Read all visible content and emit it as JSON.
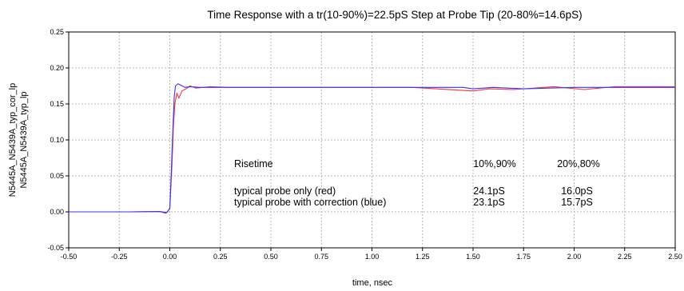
{
  "chart_data": {
    "type": "line",
    "title": "Time Response with a tr(10-90%)=22.5pS Step at Probe Tip (20-80%=14.6pS)",
    "xlabel": "time, nsec",
    "xlim": [
      -0.5,
      2.5
    ],
    "ylim": [
      -0.05,
      0.25
    ],
    "x_ticks": [
      -0.5,
      -0.25,
      0.0,
      0.25,
      0.5,
      0.75,
      1.0,
      1.25,
      1.5,
      1.75,
      2.0,
      2.25,
      2.5
    ],
    "x_tick_labels": [
      "-0.50",
      "-0.25",
      "0.00",
      "0.25",
      "0.50",
      "0.75",
      "1.00",
      "1.25",
      "1.50",
      "1.75",
      "2.00",
      "2.25",
      "2.50"
    ],
    "y_ticks": [
      -0.05,
      0.0,
      0.05,
      0.1,
      0.15,
      0.2,
      0.25
    ],
    "y_tick_labels": [
      "-0.05",
      "0.00",
      "0.05",
      "0.10",
      "0.15",
      "0.20",
      "0.25"
    ],
    "grid": true,
    "legend": "left-vertical",
    "series": [
      {
        "name": "N5445A_N5439A_typ_cor_lp",
        "color": "#3333ff",
        "points": [
          [
            -0.5,
            0.0
          ],
          [
            -0.2,
            0.0
          ],
          [
            -0.05,
            0.0005
          ],
          [
            -0.015,
            -0.001
          ],
          [
            0.0,
            0.005
          ],
          [
            0.008,
            0.06
          ],
          [
            0.016,
            0.12
          ],
          [
            0.022,
            0.16
          ],
          [
            0.028,
            0.175
          ],
          [
            0.04,
            0.178
          ],
          [
            0.055,
            0.176
          ],
          [
            0.075,
            0.173
          ],
          [
            0.1,
            0.174
          ],
          [
            0.15,
            0.173
          ],
          [
            0.25,
            0.173
          ],
          [
            0.5,
            0.173
          ],
          [
            1.0,
            0.173
          ],
          [
            1.45,
            0.173
          ],
          [
            1.5,
            0.171
          ],
          [
            1.6,
            0.173
          ],
          [
            1.75,
            0.171
          ],
          [
            2.0,
            0.173
          ],
          [
            2.5,
            0.173
          ]
        ]
      },
      {
        "name": "N5445A_N5439A_typ_lp",
        "color": "#ff3333",
        "points": [
          [
            -0.5,
            0.0
          ],
          [
            -0.2,
            0.0
          ],
          [
            -0.05,
            0.0005
          ],
          [
            -0.02,
            -0.002
          ],
          [
            0.0,
            0.004
          ],
          [
            0.01,
            0.06
          ],
          [
            0.018,
            0.12
          ],
          [
            0.025,
            0.15
          ],
          [
            0.035,
            0.165
          ],
          [
            0.045,
            0.158
          ],
          [
            0.06,
            0.168
          ],
          [
            0.08,
            0.171
          ],
          [
            0.1,
            0.175
          ],
          [
            0.13,
            0.172
          ],
          [
            0.2,
            0.174
          ],
          [
            0.3,
            0.173
          ],
          [
            0.7,
            0.173
          ],
          [
            1.2,
            0.173
          ],
          [
            1.5,
            0.168
          ],
          [
            1.58,
            0.171
          ],
          [
            1.7,
            0.17
          ],
          [
            1.9,
            0.174
          ],
          [
            2.05,
            0.17
          ],
          [
            2.2,
            0.174
          ],
          [
            2.5,
            0.174
          ]
        ]
      }
    ],
    "annotation": {
      "heading": "Risetime",
      "col1": "10%,90%",
      "col2": "20%,80%",
      "rows": [
        {
          "label": "typical probe only (red)",
          "v1": "24.1pS",
          "v2": "16.0pS"
        },
        {
          "label": "typical probe with correction (blue)",
          "v1": "23.1pS",
          "v2": "15.7pS"
        }
      ]
    }
  }
}
